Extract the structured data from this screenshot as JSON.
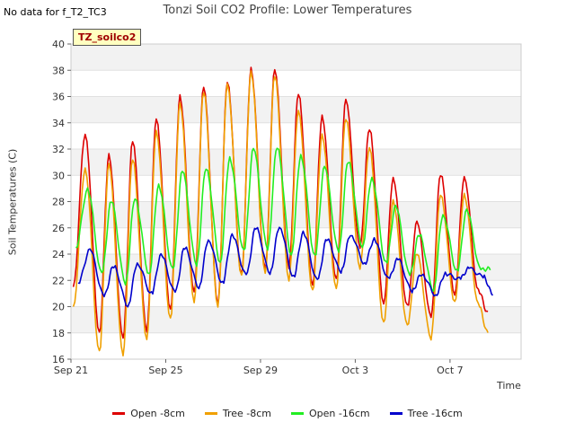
{
  "note": "No data for f_T2_TC3",
  "badge": "TZ_soilco2",
  "chart_data": {
    "type": "line",
    "title": "Tonzi Soil CO2 Profile: Lower Temperatures",
    "xlabel": "Time",
    "ylabel": "Soil Temperatures (C)",
    "ylim": [
      16,
      40
    ],
    "yticks": [
      16,
      18,
      20,
      22,
      24,
      26,
      28,
      30,
      32,
      34,
      36,
      38,
      40
    ],
    "xlim": [
      0,
      19
    ],
    "xticks": [
      {
        "day": 0,
        "label": "Sep 21"
      },
      {
        "day": 4,
        "label": "Sep 25"
      },
      {
        "day": 8,
        "label": "Sep 29"
      },
      {
        "day": 12,
        "label": "Oct 3"
      },
      {
        "day": 16,
        "label": "Oct 7"
      }
    ],
    "grid": true,
    "legend_position": "bottom",
    "series": [
      {
        "name": "Open -8cm",
        "color": "#dd0000",
        "peak_x": [
          0.6,
          1.6,
          2.6,
          3.6,
          4.6,
          5.6,
          6.6,
          7.6,
          8.6,
          9.6,
          10.6,
          11.6,
          12.6,
          13.6,
          14.6,
          15.6,
          16.6,
          17.6
        ],
        "peaks": [
          33.2,
          31.5,
          32.6,
          34.4,
          36.0,
          36.7,
          37.2,
          38.1,
          38.0,
          36.3,
          34.5,
          35.7,
          33.6,
          29.8,
          26.4,
          30.1,
          29.9,
          19.5
        ],
        "trough_x": [
          0.1,
          1.2,
          2.2,
          3.2,
          4.2,
          5.2,
          6.2,
          7.2,
          8.2,
          9.2,
          10.2,
          11.2,
          12.2,
          13.2,
          14.2,
          15.2,
          16.2,
          17.2
        ],
        "troughs": [
          21.5,
          18.0,
          17.5,
          18.2,
          19.8,
          21.0,
          20.2,
          22.5,
          22.8,
          23.0,
          21.7,
          22.0,
          24.5,
          20.3,
          20.0,
          19.2,
          21.0,
          21.2
        ]
      },
      {
        "name": "Tree -8cm",
        "color": "#f0a000",
        "peak_x": [
          0.6,
          1.6,
          2.6,
          3.6,
          4.6,
          5.6,
          6.6,
          7.6,
          8.6,
          9.6,
          10.6,
          11.6,
          12.6,
          13.6,
          14.6,
          15.6,
          16.6,
          17.6
        ],
        "peaks": [
          30.5,
          30.8,
          31.3,
          33.4,
          35.4,
          36.4,
          37.0,
          37.8,
          37.6,
          35.0,
          33.0,
          34.3,
          32.2,
          28.0,
          24.0,
          28.6,
          28.5,
          18.0
        ],
        "trough_x": [
          0.1,
          1.2,
          2.2,
          3.2,
          4.2,
          5.2,
          6.2,
          7.2,
          8.2,
          9.2,
          10.2,
          11.2,
          12.2,
          13.2,
          14.2,
          15.2,
          16.2,
          17.2
        ],
        "troughs": [
          20.0,
          16.5,
          16.3,
          17.6,
          19.0,
          20.3,
          20.1,
          22.3,
          22.5,
          22.1,
          21.2,
          21.3,
          23.0,
          18.8,
          18.5,
          17.6,
          20.4,
          20.1
        ]
      },
      {
        "name": "Open -16cm",
        "color": "#22ee22",
        "peak_x": [
          0.7,
          1.7,
          2.7,
          3.7,
          4.7,
          5.7,
          6.7,
          7.7,
          8.7,
          9.7,
          10.7,
          11.7,
          12.7,
          13.7,
          14.7,
          15.7,
          16.7,
          17.7
        ],
        "peaks": [
          28.9,
          28.0,
          28.3,
          29.2,
          30.3,
          30.6,
          31.3,
          32.0,
          32.2,
          31.5,
          30.6,
          31.1,
          29.8,
          27.6,
          25.5,
          27.0,
          27.3,
          22.9
        ],
        "trough_x": [
          0.2,
          1.3,
          2.3,
          3.3,
          4.3,
          5.3,
          6.3,
          7.3,
          8.3,
          9.3,
          10.3,
          11.3,
          12.3,
          13.3,
          14.3,
          15.3,
          16.3,
          17.3
        ],
        "troughs": [
          24.5,
          22.5,
          21.8,
          22.5,
          22.8,
          23.2,
          23.4,
          24.2,
          24.4,
          24.0,
          23.8,
          24.2,
          24.6,
          23.3,
          22.4,
          21.3,
          22.7,
          22.8
        ]
      },
      {
        "name": "Tree -16cm",
        "color": "#0000cc",
        "peak_x": [
          0.8,
          1.8,
          2.8,
          3.8,
          4.8,
          5.8,
          6.8,
          7.8,
          8.8,
          9.8,
          10.8,
          11.8,
          12.8,
          13.8,
          14.8,
          15.8,
          16.8,
          17.8
        ],
        "peaks": [
          24.3,
          23.1,
          23.3,
          23.9,
          24.5,
          25.1,
          25.4,
          26.0,
          26.1,
          25.6,
          25.1,
          25.5,
          25.1,
          23.6,
          22.5,
          22.5,
          22.9,
          21.0
        ],
        "trough_x": [
          0.3,
          1.4,
          2.4,
          3.4,
          4.4,
          5.4,
          6.4,
          7.4,
          8.4,
          9.4,
          10.4,
          11.4,
          12.4,
          13.4,
          14.4,
          15.4,
          16.4,
          17.4
        ],
        "troughs": [
          21.8,
          20.8,
          20.1,
          21.0,
          21.1,
          21.5,
          21.8,
          22.4,
          22.6,
          22.3,
          22.0,
          22.7,
          23.3,
          22.1,
          21.2,
          20.9,
          22.1,
          22.3
        ]
      }
    ]
  }
}
